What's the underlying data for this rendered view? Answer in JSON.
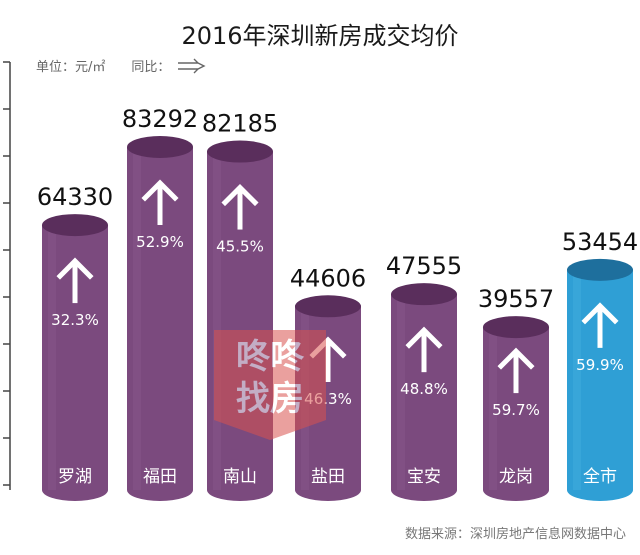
{
  "title": "2016年深圳新房成交均价",
  "unit_label": "单位：元/㎡",
  "yoy_label": "同比：",
  "source": "数据来源：深圳房地产信息网数据中心",
  "watermark_text": [
    "咚咚",
    "找房"
  ],
  "colors": {
    "district_body": "#7b4a7e",
    "district_top": "#5a2e5c",
    "district_light": "#8d5b90",
    "city_body": "#2f9fd5",
    "city_top": "#1e6f9d",
    "city_light": "#4bb4e3",
    "arrow": "#ffffff",
    "axis": "#444444",
    "watermark": "#d9534f"
  },
  "chart_data": {
    "type": "bar",
    "title": "2016年深圳新房成交均价",
    "ylabel": "单位：元/㎡",
    "categories": [
      "罗湖",
      "福田",
      "南山",
      "盐田",
      "宝安",
      "龙岗",
      "全市"
    ],
    "series": [
      {
        "values": [
          64330,
          83292,
          82185,
          44606,
          47555,
          39557,
          53454
        ]
      },
      {
        "values": [
          "32.3%",
          "52.9%",
          "45.5%",
          "46.3%",
          "48.8%",
          "59.7%",
          "59.9%"
        ]
      }
    ],
    "highlight_category": "全市",
    "grid": false
  }
}
